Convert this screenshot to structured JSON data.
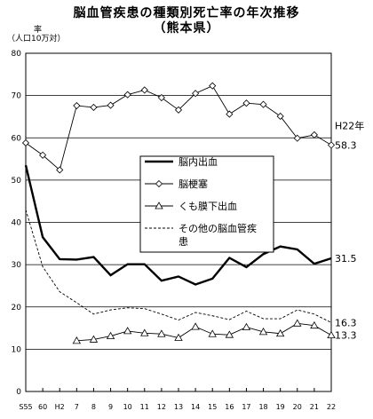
{
  "title_line1": "脳血管疾患の種類別死亡率の年次推移",
  "title_line2": "（熊本県）",
  "chart_data": {
    "type": "line",
    "ylabel_top": "率",
    "ylabel_bottom": "（人口10万対）",
    "ylim": [
      0,
      80
    ],
    "yticks": [
      0,
      10,
      20,
      30,
      40,
      50,
      60,
      70,
      80
    ],
    "x_tick_labels": [
      "S55",
      "60",
      "H2",
      "7",
      "8",
      "9",
      "10",
      "11",
      "12",
      "13",
      "14",
      "15",
      "16",
      "17",
      "18",
      "19",
      "20",
      "21",
      "22"
    ],
    "year_label": "H22年",
    "legend_position": "center",
    "series": [
      {
        "name": "脳内出血",
        "style": "solid-thick",
        "marker": "none",
        "values": [
          53.5,
          36.5,
          31.3,
          31.2,
          31.8,
          27.5,
          30.1,
          30.1,
          26.2,
          27.2,
          25.3,
          26.7,
          31.6,
          29.4,
          32.5,
          34.3,
          33.6,
          30.2,
          31.5
        ],
        "end_label": "31.5"
      },
      {
        "name": "脳梗塞",
        "style": "solid",
        "marker": "diamond",
        "values": [
          58.8,
          55.9,
          52.4,
          67.6,
          67.2,
          67.7,
          70.2,
          71.3,
          69.5,
          66.6,
          70.5,
          72.3,
          65.6,
          68.2,
          67.9,
          65.1,
          59.9,
          60.7,
          58.3
        ],
        "end_label": "58.3"
      },
      {
        "name": "くも膜下出血",
        "style": "solid",
        "marker": "triangle",
        "values": [
          null,
          null,
          null,
          12.0,
          12.3,
          13.1,
          14.3,
          13.8,
          13.6,
          12.7,
          15.3,
          13.6,
          13.4,
          15.2,
          14.1,
          13.7,
          16.1,
          15.6,
          13.3
        ],
        "end_label": "13.3"
      },
      {
        "name": "その他の脳血管疾患",
        "style": "dashed",
        "marker": "none",
        "values": [
          43.0,
          29.5,
          23.6,
          21.0,
          18.3,
          19.3,
          19.8,
          19.6,
          18.3,
          16.9,
          18.7,
          17.9,
          17.0,
          19.0,
          17.2,
          17.2,
          19.3,
          18.3,
          16.3
        ],
        "end_label": "16.3"
      }
    ]
  }
}
